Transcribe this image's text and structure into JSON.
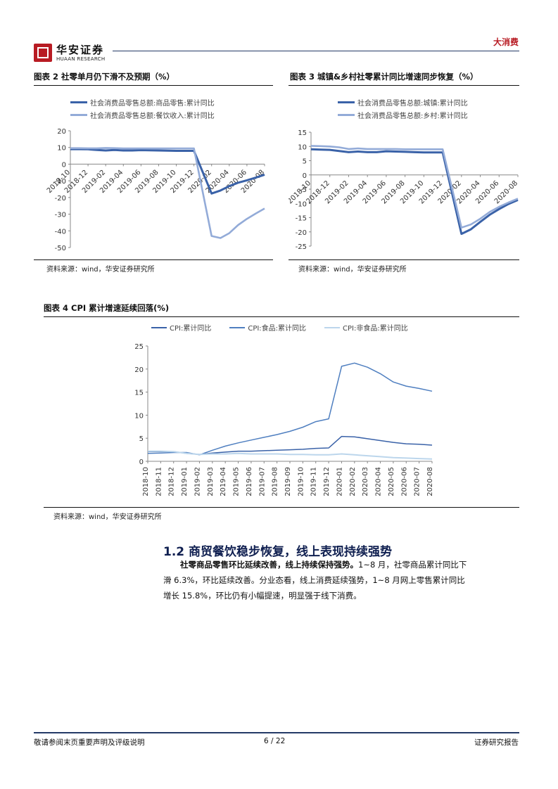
{
  "header": {
    "logo_cn": "华安证券",
    "logo_en": "HUAAN RESEARCH",
    "category": "大消费"
  },
  "fig2": {
    "title": "图表 2 社零单月仍下滑不及预期（%）",
    "legend": [
      "社会消费品零售总额:商品零售:累计同比",
      "社会消费品零售总额:餐饮收入:累计同比"
    ],
    "source": "资料来源：wind，华安证券研究所"
  },
  "fig3": {
    "title": "图表 3 城镇&乡村社零累计同比增速同步恢复（%）",
    "legend": [
      "社会消费品零售总额:城镇:累计同比",
      "社会消费品零售总额:乡村:累计同比"
    ],
    "source": "资料来源：wind，华安证券研究所"
  },
  "fig4": {
    "title": "图表 4 CPI 累计增速延续回落(%)",
    "legend": [
      "CPI:累计同比",
      "CPI:食品:累计同比",
      "CPI:非食品:累计同比"
    ],
    "source": "资料来源：wind，华安证券研究所"
  },
  "section": {
    "title": "1.2  商贸餐饮稳步恢复，线上表现持续强势",
    "para_bold": "社零商品零售环比延续改善，线上持续保持强势。",
    "para_line1_rest": "1~8 月，社零商品累计同比下",
    "para_line2": "滑 6.3%，环比延续改善。分业态看，线上消费延续强势，1~8 月网上零售累计同比",
    "para_line3": "增长 15.8%，环比仍有小幅提速，明显强于线下消费。"
  },
  "footer": {
    "left": "敬请参阅末页重要声明及评级说明",
    "center": "6 / 22",
    "right": "证券研究报告"
  },
  "colors": {
    "dark_series": "#3a62a8",
    "light_series": "#93abd8",
    "very_light": "#bcd6ec",
    "brand_red": "#b81b23",
    "navy": "#243a67"
  },
  "chart_data": [
    {
      "type": "line",
      "id": "fig2",
      "x": [
        "2018-10",
        "2018-11",
        "2018-12",
        "2019-01",
        "2019-02",
        "2019-03",
        "2019-04",
        "2019-05",
        "2019-06",
        "2019-07",
        "2019-08",
        "2019-09",
        "2019-10",
        "2019-11",
        "2019-12",
        "2020-01",
        "2020-02",
        "2020-03",
        "2020-04",
        "2020-05",
        "2020-06",
        "2020-07",
        "2020-08"
      ],
      "tick_labels": [
        "2018-10",
        "2018-12",
        "2019-02",
        "2019-04",
        "2019-06",
        "2019-08",
        "2019-10",
        "2019-12",
        "2020-02",
        "2020-04",
        "2020-06",
        "2020-08"
      ],
      "series": [
        {
          "name": "社会消费品零售总额:商品零售:累计同比",
          "values": [
            9.0,
            9.0,
            8.9,
            8.5,
            8.2,
            8.5,
            8.2,
            8.2,
            8.4,
            8.3,
            8.2,
            8.1,
            8.0,
            8.0,
            8.0,
            null,
            -17.6,
            -15.8,
            -13.2,
            -11.1,
            -9.7,
            -8.1,
            -6.3
          ]
        },
        {
          "name": "社会消费品零售总额:餐饮收入:累计同比",
          "values": [
            9.6,
            9.6,
            9.5,
            9.5,
            9.7,
            9.6,
            9.4,
            9.4,
            9.4,
            9.4,
            9.4,
            9.4,
            9.4,
            9.4,
            9.4,
            null,
            -43.1,
            -44.3,
            -41.4,
            -36.5,
            -32.8,
            -29.6,
            -26.6
          ]
        }
      ],
      "ylim": [
        -50,
        20
      ],
      "yticks": [
        20,
        10,
        0,
        -10,
        -20,
        -30,
        -40,
        -50
      ],
      "xlabel": "",
      "ylabel": "",
      "grid": false,
      "legend": "top"
    },
    {
      "type": "line",
      "id": "fig3",
      "x": [
        "2018-10",
        "2018-11",
        "2018-12",
        "2019-01",
        "2019-02",
        "2019-03",
        "2019-04",
        "2019-05",
        "2019-06",
        "2019-07",
        "2019-08",
        "2019-09",
        "2019-10",
        "2019-11",
        "2019-12",
        "2020-01",
        "2020-02",
        "2020-03",
        "2020-04",
        "2020-05",
        "2020-06",
        "2020-07",
        "2020-08"
      ],
      "tick_labels": [
        "2018-10",
        "2018-12",
        "2019-02",
        "2019-04",
        "2019-06",
        "2019-08",
        "2019-10",
        "2019-12",
        "2020-02",
        "2020-04",
        "2020-06",
        "2020-08"
      ],
      "series": [
        {
          "name": "社会消费品零售总额:城镇:累计同比",
          "values": [
            9.0,
            8.9,
            8.8,
            8.4,
            8.0,
            8.2,
            8.0,
            8.0,
            8.3,
            8.2,
            8.1,
            8.0,
            7.9,
            7.9,
            7.9,
            null,
            -20.7,
            -19.1,
            -16.5,
            -14.0,
            -12.0,
            -10.2,
            -8.8
          ]
        },
        {
          "name": "社会消费品零售总额:乡村:累计同比",
          "values": [
            10.2,
            10.1,
            10.0,
            9.7,
            9.1,
            9.3,
            9.1,
            9.1,
            9.1,
            9.1,
            9.0,
            9.0,
            9.0,
            9.0,
            9.0,
            null,
            -18.5,
            -17.4,
            -15.4,
            -13.0,
            -11.2,
            -9.7,
            -8.3
          ]
        }
      ],
      "ylim": [
        -25,
        15
      ],
      "yticks": [
        15,
        10,
        5,
        0,
        -5,
        -10,
        -15,
        -20,
        -25
      ],
      "xlabel": "",
      "ylabel": "",
      "grid": false,
      "legend": "top"
    },
    {
      "type": "line",
      "id": "fig4",
      "x": [
        "2018-10",
        "2018-11",
        "2018-12",
        "2019-01",
        "2019-02",
        "2019-03",
        "2019-04",
        "2019-05",
        "2019-06",
        "2019-07",
        "2019-08",
        "2019-09",
        "2019-10",
        "2019-11",
        "2019-12",
        "2020-01",
        "2020-02",
        "2020-03",
        "2020-04",
        "2020-05",
        "2020-06",
        "2020-07",
        "2020-08"
      ],
      "tick_labels": [
        "2018-10",
        "2018-11",
        "2018-12",
        "2019-01",
        "2019-02",
        "2019-03",
        "2019-04",
        "2019-05",
        "2019-06",
        "2019-07",
        "2019-08",
        "2019-09",
        "2019-10",
        "2019-11",
        "2019-12",
        "2020-01",
        "2020-02",
        "2020-03",
        "2020-04",
        "2020-05",
        "2020-06",
        "2020-07",
        "2020-08"
      ],
      "series": [
        {
          "name": "CPI:累计同比",
          "values": [
            2.1,
            2.1,
            2.1,
            1.7,
            1.5,
            1.8,
            2.0,
            2.2,
            2.2,
            2.3,
            2.4,
            2.5,
            2.6,
            2.8,
            2.9,
            5.4,
            5.3,
            4.9,
            4.5,
            4.1,
            3.8,
            3.7,
            3.5
          ]
        },
        {
          "name": "CPI:食品:累计同比",
          "values": [
            1.7,
            1.8,
            1.9,
            1.9,
            1.4,
            2.4,
            3.3,
            4.0,
            4.6,
            5.2,
            5.8,
            6.5,
            7.4,
            8.6,
            9.2,
            20.6,
            21.3,
            20.4,
            19.0,
            17.2,
            16.3,
            15.8,
            15.2
          ]
        },
        {
          "name": "CPI:非食品:累计同比",
          "values": [
            2.2,
            2.2,
            2.1,
            1.7,
            1.5,
            1.6,
            1.6,
            1.7,
            1.6,
            1.6,
            1.6,
            1.5,
            1.5,
            1.4,
            1.4,
            1.6,
            1.4,
            1.2,
            1.0,
            0.8,
            0.7,
            0.6,
            0.5
          ]
        }
      ],
      "ylim": [
        0,
        25
      ],
      "yticks": [
        25,
        20,
        15,
        10,
        5,
        0
      ],
      "xlabel": "",
      "ylabel": "",
      "grid": false,
      "legend": "top"
    }
  ]
}
